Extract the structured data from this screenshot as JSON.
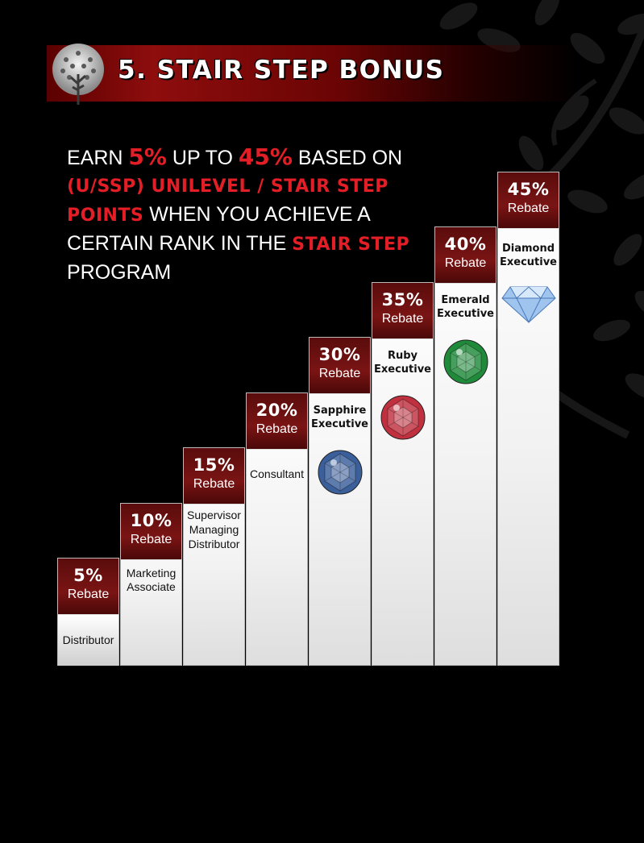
{
  "header": {
    "title": "5. STAIR STEP BONUS"
  },
  "intro": {
    "parts": [
      {
        "text": "EARN ",
        "style": "plain"
      },
      {
        "text": "5%",
        "style": "big"
      },
      {
        "text": " UP TO ",
        "style": "plain"
      },
      {
        "text": "45%",
        "style": "big"
      },
      {
        "text": " BASED ON ",
        "style": "plain"
      },
      {
        "text": "(U/SSP) UNILEVEL / STAIR STEP POINTS",
        "style": "hl"
      },
      {
        "text": " WHEN YOU ACHIEVE A CERTAIN RANK IN THE ",
        "style": "plain"
      },
      {
        "text": "STAIR STEP",
        "style": "hl"
      },
      {
        "text": " PROGRAM",
        "style": "plain"
      }
    ]
  },
  "steps": [
    {
      "percent": "5%",
      "rebate": "Rebate",
      "rank": "Distributor",
      "gem": null,
      "level": 1
    },
    {
      "percent": "10%",
      "rebate": "Rebate",
      "rank": "Marketing Associate",
      "gem": null,
      "level": 2
    },
    {
      "percent": "15%",
      "rebate": "Rebate",
      "rank": "Supervisor Managing Distributor",
      "gem": null,
      "level": 3
    },
    {
      "percent": "20%",
      "rebate": "Rebate",
      "rank": "Consultant",
      "gem": null,
      "level": 4
    },
    {
      "percent": "30%",
      "rebate": "Rebate",
      "rank": "Sapphire Executive",
      "gem": "sapphire",
      "level": 5
    },
    {
      "percent": "35%",
      "rebate": "Rebate",
      "rank": "Ruby Executive",
      "gem": "ruby",
      "level": 6
    },
    {
      "percent": "40%",
      "rebate": "Rebate",
      "rank": "Emerald Executive",
      "gem": "emerald",
      "level": 7
    },
    {
      "percent": "45%",
      "rebate": "Rebate",
      "rank": "Diamond Executive",
      "gem": "diamond",
      "level": 8
    }
  ],
  "colors": {
    "accent_red": "#e41e26",
    "banner_red": "#8e0d0d",
    "rebate_maroon": "#6a1010",
    "background": "#000000",
    "sapphire": "#3a5f9a",
    "ruby": "#c0303f",
    "emerald": "#1f8a3a",
    "diamond": "#9fc4ee"
  }
}
